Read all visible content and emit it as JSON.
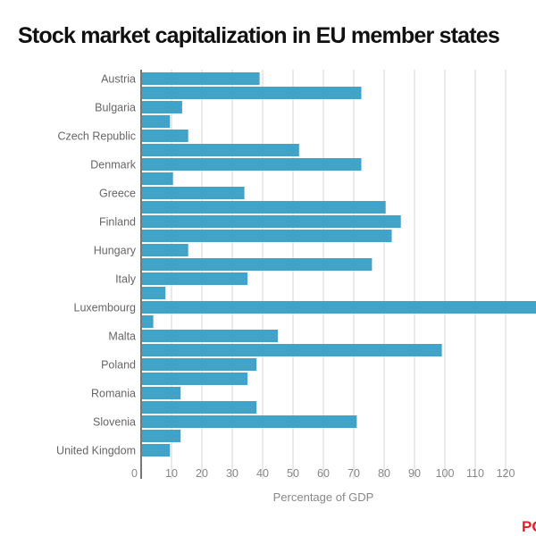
{
  "chart_data": {
    "type": "bar",
    "orientation": "horizontal",
    "title": "Stock market capitalization in EU member states",
    "xlabel": "Percentage of GDP",
    "ylabel": "",
    "xlim": [
      0,
      126
    ],
    "xticks": [
      0,
      10,
      20,
      30,
      40,
      50,
      60,
      70,
      80,
      90,
      100,
      110,
      120
    ],
    "grid": "vertical",
    "bar_color": "#42a3c8",
    "categories": [
      "Austria",
      "",
      "Bulgaria",
      "",
      "Czech Republic",
      "",
      "Denmark",
      "",
      "Greece",
      "",
      "Finland",
      "",
      "Hungary",
      "",
      "Italy",
      "",
      "Luxembourg",
      "",
      "Malta",
      "",
      "Poland",
      "",
      "Romania",
      "",
      "Slovenia",
      "",
      "United Kingdom"
    ],
    "values": [
      39,
      72.5,
      13.5,
      9.5,
      15.5,
      52,
      72.5,
      10.5,
      34,
      80.5,
      85.5,
      82.5,
      15.5,
      76,
      35,
      8,
      130,
      4,
      45,
      99,
      38,
      35,
      13,
      38,
      71,
      13,
      9.5
    ]
  },
  "logo_text": "PO",
  "colors": {
    "bar": "#42a3c8",
    "grid": "#d6d6d6",
    "axis": "#777777",
    "logo": "#e0202a"
  }
}
